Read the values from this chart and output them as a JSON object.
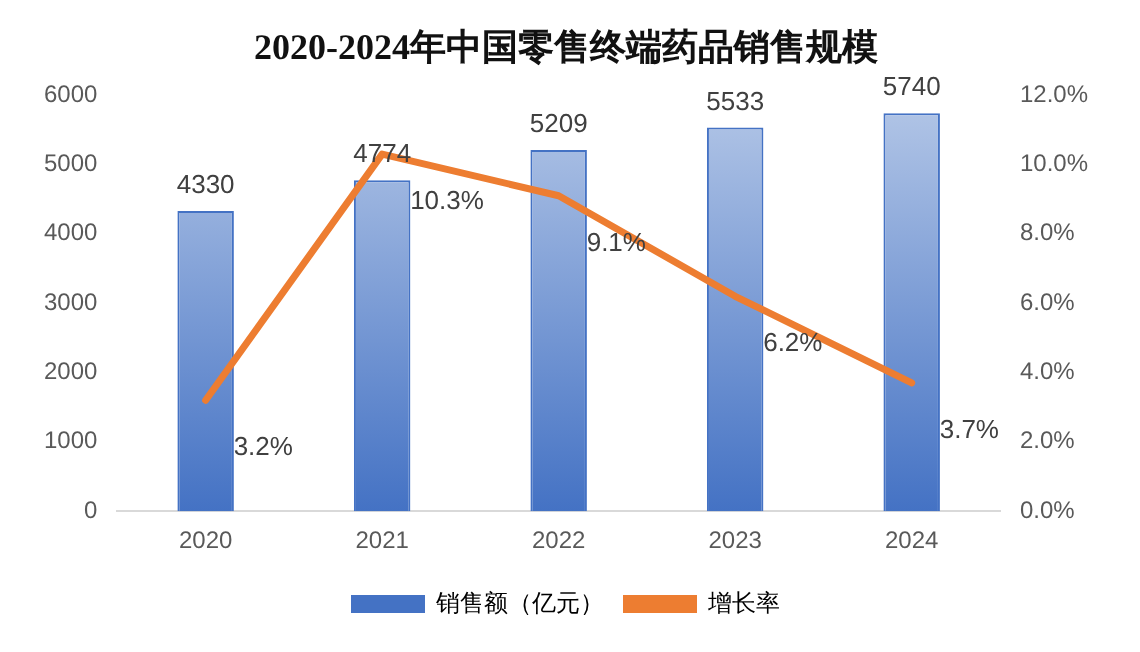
{
  "chart_data": {
    "type": "bar",
    "title": "2020-2024年中国零售终端药品销售规模",
    "categories": [
      "2020",
      "2021",
      "2022",
      "2023",
      "2024"
    ],
    "series": [
      {
        "name": "销售额（亿元）",
        "color": "#4472c4",
        "values": [
          4330,
          4774,
          5209,
          5533,
          5740
        ],
        "value_labels": [
          "4330",
          "4774",
          "5209",
          "5533",
          "5740"
        ]
      },
      {
        "name": "增长率",
        "type": "line",
        "axis": "y2",
        "color": "#ed7d31",
        "values": [
          3.2,
          10.3,
          9.1,
          6.2,
          3.7
        ],
        "value_labels": [
          "3.2%",
          "10.3%",
          "9.1%",
          "6.2%",
          "3.7%"
        ]
      }
    ],
    "ylim": [
      0,
      6000
    ],
    "yticks": [
      0,
      1000,
      2000,
      3000,
      4000,
      5000,
      6000
    ],
    "y2lim": [
      0,
      12
    ],
    "y2ticks": [
      {
        "value": 0,
        "label": "0.0%"
      },
      {
        "value": 2,
        "label": "2.0%"
      },
      {
        "value": 4,
        "label": "4.0%"
      },
      {
        "value": 6,
        "label": "6.0%"
      },
      {
        "value": 8,
        "label": "8.0%"
      },
      {
        "value": 10,
        "label": "10.0%"
      },
      {
        "value": 12,
        "label": "12.0%"
      }
    ],
    "grid": false,
    "legend": "bottom",
    "marker": "none"
  }
}
